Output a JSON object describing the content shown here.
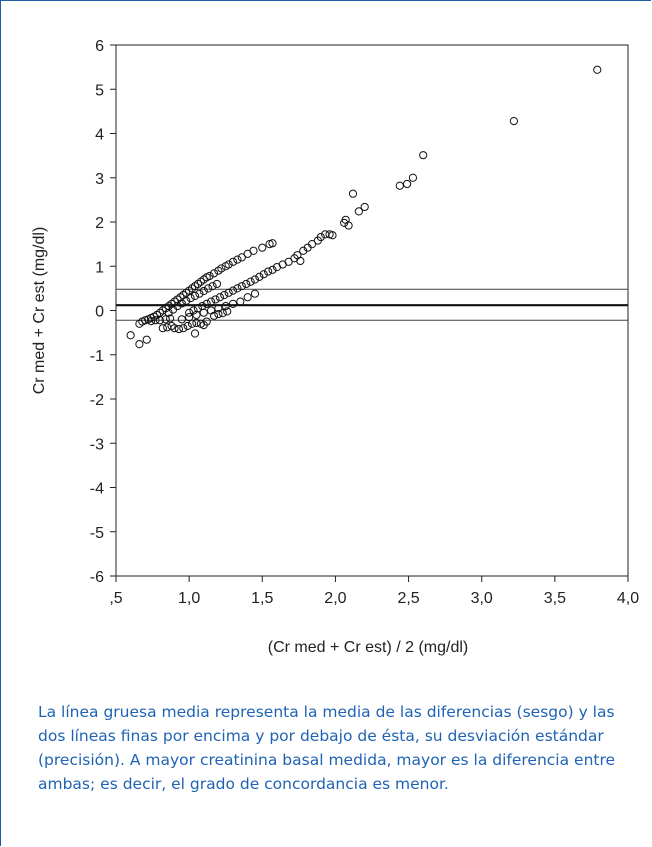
{
  "chart_data": {
    "type": "scatter",
    "title": "",
    "xlabel": "(Cr med + Cr est) / 2 (mg/dl)",
    "ylabel": "Cr med + Cr est  (mg/dl)",
    "xlim": [
      0.5,
      4.0
    ],
    "ylim": [
      -6,
      6
    ],
    "x_ticks": [
      ",5",
      "1,0",
      "1,5",
      "2,0",
      "2,5",
      "3,0",
      "3,5",
      "4,0"
    ],
    "y_ticks": [
      "6",
      "5",
      "4",
      "3",
      "2",
      "1",
      "0",
      "-1",
      "-2",
      "-3",
      "-4",
      "-5",
      "-6"
    ],
    "reference_lines": {
      "mean_bias": 0.12,
      "upper_sd": 0.48,
      "lower_sd": -0.22
    },
    "points": [
      [
        0.6,
        -0.56
      ],
      [
        0.66,
        -0.3
      ],
      [
        0.66,
        -0.76
      ],
      [
        0.71,
        -0.66
      ],
      [
        0.68,
        -0.25
      ],
      [
        0.7,
        -0.22
      ],
      [
        0.72,
        -0.2
      ],
      [
        0.74,
        -0.17
      ],
      [
        0.76,
        -0.14
      ],
      [
        0.78,
        -0.1
      ],
      [
        0.8,
        -0.05
      ],
      [
        0.82,
        0.0
      ],
      [
        0.84,
        0.05
      ],
      [
        0.86,
        0.1
      ],
      [
        0.88,
        0.15
      ],
      [
        0.9,
        0.2
      ],
      [
        0.92,
        0.25
      ],
      [
        0.94,
        0.3
      ],
      [
        0.96,
        0.35
      ],
      [
        0.98,
        0.4
      ],
      [
        1.0,
        0.45
      ],
      [
        1.02,
        0.5
      ],
      [
        1.04,
        0.55
      ],
      [
        1.06,
        0.6
      ],
      [
        1.08,
        0.65
      ],
      [
        1.1,
        0.7
      ],
      [
        1.12,
        0.75
      ],
      [
        1.14,
        0.78
      ],
      [
        1.17,
        0.84
      ],
      [
        1.2,
        0.9
      ],
      [
        1.22,
        0.95
      ],
      [
        1.25,
        1.0
      ],
      [
        1.27,
        1.04
      ],
      [
        1.3,
        1.1
      ],
      [
        1.33,
        1.15
      ],
      [
        1.36,
        1.2
      ],
      [
        1.4,
        1.28
      ],
      [
        1.44,
        1.35
      ],
      [
        1.5,
        1.42
      ],
      [
        1.55,
        1.5
      ],
      [
        1.57,
        1.52
      ],
      [
        0.74,
        -0.24
      ],
      [
        0.77,
        -0.22
      ],
      [
        0.8,
        -0.22
      ],
      [
        0.84,
        -0.2
      ],
      [
        0.87,
        -0.18
      ],
      [
        0.86,
        -0.05
      ],
      [
        0.89,
        0.02
      ],
      [
        0.92,
        0.1
      ],
      [
        0.95,
        0.16
      ],
      [
        0.98,
        0.22
      ],
      [
        1.01,
        0.28
      ],
      [
        1.04,
        0.33
      ],
      [
        1.07,
        0.38
      ],
      [
        1.1,
        0.44
      ],
      [
        1.13,
        0.5
      ],
      [
        1.16,
        0.55
      ],
      [
        1.19,
        0.6
      ],
      [
        0.82,
        -0.4
      ],
      [
        0.85,
        -0.38
      ],
      [
        0.88,
        -0.35
      ],
      [
        0.9,
        -0.4
      ],
      [
        0.93,
        -0.42
      ],
      [
        0.96,
        -0.4
      ],
      [
        0.99,
        -0.35
      ],
      [
        1.02,
        -0.3
      ],
      [
        1.05,
        -0.28
      ],
      [
        1.08,
        -0.3
      ],
      [
        1.1,
        -0.33
      ],
      [
        1.12,
        -0.25
      ],
      [
        1.04,
        -0.52
      ],
      [
        1.0,
        -0.05
      ],
      [
        1.03,
        0.0
      ],
      [
        1.06,
        0.05
      ],
      [
        1.09,
        0.1
      ],
      [
        1.12,
        0.15
      ],
      [
        1.15,
        0.2
      ],
      [
        1.18,
        0.25
      ],
      [
        1.21,
        0.3
      ],
      [
        1.24,
        0.35
      ],
      [
        1.27,
        0.4
      ],
      [
        1.3,
        0.45
      ],
      [
        1.33,
        0.5
      ],
      [
        1.36,
        0.55
      ],
      [
        1.39,
        0.6
      ],
      [
        1.42,
        0.65
      ],
      [
        1.45,
        0.7
      ],
      [
        1.48,
        0.76
      ],
      [
        1.51,
        0.82
      ],
      [
        1.54,
        0.88
      ],
      [
        1.57,
        0.92
      ],
      [
        1.6,
        0.98
      ],
      [
        1.64,
        1.04
      ],
      [
        1.68,
        1.1
      ],
      [
        1.72,
        1.18
      ],
      [
        1.76,
        1.12
      ],
      [
        1.74,
        1.25
      ],
      [
        1.78,
        1.35
      ],
      [
        1.81,
        1.42
      ],
      [
        1.84,
        1.5
      ],
      [
        1.88,
        1.58
      ],
      [
        1.9,
        1.66
      ],
      [
        1.93,
        1.72
      ],
      [
        1.96,
        1.72
      ],
      [
        1.98,
        1.7
      ],
      [
        0.95,
        -0.2
      ],
      [
        1.0,
        -0.15
      ],
      [
        1.05,
        -0.1
      ],
      [
        1.1,
        -0.05
      ],
      [
        1.15,
        0.0
      ],
      [
        1.2,
        0.05
      ],
      [
        1.25,
        0.1
      ],
      [
        1.3,
        0.15
      ],
      [
        1.35,
        0.2
      ],
      [
        1.4,
        0.3
      ],
      [
        1.45,
        0.38
      ],
      [
        1.17,
        -0.12
      ],
      [
        1.2,
        -0.08
      ],
      [
        1.23,
        -0.06
      ],
      [
        1.26,
        -0.02
      ],
      [
        2.06,
        1.98
      ],
      [
        2.09,
        1.92
      ],
      [
        2.07,
        2.05
      ],
      [
        2.12,
        2.64
      ],
      [
        2.16,
        2.24
      ],
      [
        2.2,
        2.34
      ],
      [
        2.44,
        2.82
      ],
      [
        2.49,
        2.86
      ],
      [
        2.53,
        3.0
      ],
      [
        2.6,
        3.51
      ],
      [
        3.22,
        4.28
      ],
      [
        3.79,
        5.44
      ]
    ]
  }
}
